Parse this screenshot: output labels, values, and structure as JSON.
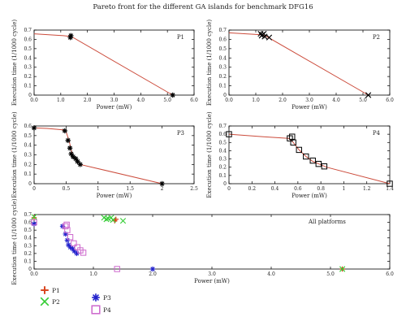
{
  "figure_title": "Pareto front for the different GA islands for benchmark DFG16",
  "colors": {
    "front_line": "#cc4c3c",
    "P1": "#d9441c",
    "P2": "#33cc33",
    "P3": "#2222cc",
    "P4": "#cc66cc",
    "black": "#000000"
  },
  "chart_data": [
    {
      "type": "line",
      "panel_label": "P1",
      "xlabel": "Power (mW)",
      "ylabel": "Execution time (1/1000 cycle)",
      "xlim": [
        0,
        6
      ],
      "ylim": [
        0,
        0.7
      ],
      "xticks": [
        "0.0",
        "1.0",
        "2.0",
        "3.0",
        "4.0",
        "5.0",
        "6.0"
      ],
      "yticks": [
        "0",
        "0.1",
        "0.2",
        "0.3",
        "0.4",
        "0.5",
        "0.6",
        "0.7"
      ],
      "line": [
        [
          0,
          0.66
        ],
        [
          1.1,
          0.64
        ],
        [
          1.4,
          0.63
        ],
        [
          5.2,
          0
        ]
      ],
      "points": [
        [
          1.38,
          0.64
        ],
        [
          1.36,
          0.62
        ],
        [
          5.2,
          0
        ]
      ],
      "marker": "star"
    },
    {
      "type": "line",
      "panel_label": "P2",
      "xlabel": "Power (mW)",
      "ylabel": "Execution time (1/1000 cycle)",
      "xlim": [
        0,
        6
      ],
      "ylim": [
        0,
        0.7
      ],
      "xticks": [
        "0.0",
        "1.0",
        "2.0",
        "3.0",
        "4.0",
        "5.0",
        "6.0"
      ],
      "yticks": [
        "0",
        "0.1",
        "0.2",
        "0.3",
        "0.4",
        "0.5",
        "0.6",
        "0.7"
      ],
      "line": [
        [
          0,
          0.67
        ],
        [
          1.2,
          0.65
        ],
        [
          1.35,
          0.64
        ],
        [
          5.2,
          0
        ]
      ],
      "points": [
        [
          1.18,
          0.66
        ],
        [
          1.25,
          0.65
        ],
        [
          1.3,
          0.66
        ],
        [
          1.22,
          0.64
        ],
        [
          1.33,
          0.63
        ],
        [
          1.5,
          0.62
        ],
        [
          5.2,
          0
        ]
      ],
      "marker": "x"
    },
    {
      "type": "line",
      "panel_label": "P3",
      "xlabel": "Power (mW)",
      "ylabel": "Execution time (1/1000 cycle)",
      "xlim": [
        0,
        2.5
      ],
      "ylim": [
        0,
        0.6
      ],
      "xticks": [
        "0",
        "0.5",
        "1",
        "1.5",
        "2",
        "2.5"
      ],
      "yticks": [
        "0",
        "0.1",
        "0.2",
        "0.3",
        "0.4",
        "0.5",
        "0.6"
      ],
      "line": [
        [
          0,
          0.58
        ],
        [
          0.2,
          0.575
        ],
        [
          0.45,
          0.56
        ],
        [
          0.5,
          0.54
        ],
        [
          0.55,
          0.44
        ],
        [
          0.58,
          0.35
        ],
        [
          0.6,
          0.3
        ],
        [
          0.63,
          0.27
        ],
        [
          0.67,
          0.24
        ],
        [
          0.72,
          0.2
        ],
        [
          2.0,
          0
        ]
      ],
      "points": [
        [
          0,
          0.58
        ],
        [
          0.48,
          0.55
        ],
        [
          0.53,
          0.45
        ],
        [
          0.56,
          0.37
        ],
        [
          0.58,
          0.31
        ],
        [
          0.61,
          0.28
        ],
        [
          0.65,
          0.26
        ],
        [
          0.68,
          0.23
        ],
        [
          0.72,
          0.2
        ],
        [
          2.0,
          0
        ]
      ],
      "marker": "star"
    },
    {
      "type": "line",
      "panel_label": "P4",
      "xlabel": "Power (mW)",
      "ylabel": "Execution time (1/1000 cycle)",
      "xlim": [
        0,
        1.4
      ],
      "ylim": [
        0,
        0.7
      ],
      "xticks": [
        "0",
        "0.2",
        "0.4",
        "0.6",
        "0.8",
        "1",
        "1.2",
        "1.4"
      ],
      "yticks": [
        "0",
        "0.1",
        "0.2",
        "0.3",
        "0.4",
        "0.5",
        "0.6",
        "0.7"
      ],
      "line": [
        [
          0,
          0.6
        ],
        [
          0.3,
          0.57
        ],
        [
          0.52,
          0.55
        ],
        [
          0.56,
          0.5
        ],
        [
          0.61,
          0.41
        ],
        [
          0.67,
          0.33
        ],
        [
          0.73,
          0.27
        ],
        [
          0.8,
          0.23
        ],
        [
          0.85,
          0.2
        ],
        [
          1.4,
          0
        ]
      ],
      "points": [
        [
          0,
          0.6
        ],
        [
          0.53,
          0.55
        ],
        [
          0.55,
          0.57
        ],
        [
          0.56,
          0.5
        ],
        [
          0.61,
          0.41
        ],
        [
          0.67,
          0.33
        ],
        [
          0.73,
          0.28
        ],
        [
          0.78,
          0.24
        ],
        [
          0.83,
          0.21
        ],
        [
          1.4,
          0
        ]
      ],
      "marker": "square"
    },
    {
      "type": "scatter",
      "panel_label": "All platforms",
      "xlabel": "Power (mW)",
      "ylabel": "Execution time (1/1000 cycle)",
      "xlim": [
        0,
        6
      ],
      "ylim": [
        0,
        0.7
      ],
      "xticks": [
        "0.0",
        "1.0",
        "2.0",
        "3.0",
        "4.0",
        "5.0",
        "6.0"
      ],
      "yticks": [
        "0",
        "0.1",
        "0.2",
        "0.3",
        "0.4",
        "0.5",
        "0.6",
        "0.7"
      ],
      "legend_position": "below-left",
      "series": [
        {
          "name": "P1",
          "marker": "plus",
          "points": [
            [
              0,
              0.66
            ],
            [
              1.38,
              0.64
            ],
            [
              1.36,
              0.62
            ],
            [
              5.2,
              0
            ]
          ]
        },
        {
          "name": "P2",
          "marker": "x",
          "points": [
            [
              0,
              0.67
            ],
            [
              1.18,
              0.66
            ],
            [
              1.25,
              0.65
            ],
            [
              1.3,
              0.66
            ],
            [
              1.22,
              0.64
            ],
            [
              1.33,
              0.63
            ],
            [
              1.5,
              0.62
            ],
            [
              5.2,
              0
            ]
          ]
        },
        {
          "name": "P3",
          "marker": "asterisk",
          "points": [
            [
              0,
              0.58
            ],
            [
              0.48,
              0.55
            ],
            [
              0.53,
              0.45
            ],
            [
              0.56,
              0.37
            ],
            [
              0.58,
              0.31
            ],
            [
              0.61,
              0.28
            ],
            [
              0.65,
              0.26
            ],
            [
              0.68,
              0.23
            ],
            [
              0.72,
              0.2
            ],
            [
              2.0,
              0
            ]
          ]
        },
        {
          "name": "P4",
          "marker": "square",
          "points": [
            [
              0,
              0.6
            ],
            [
              0.53,
              0.55
            ],
            [
              0.55,
              0.57
            ],
            [
              0.56,
              0.5
            ],
            [
              0.61,
              0.41
            ],
            [
              0.67,
              0.33
            ],
            [
              0.73,
              0.28
            ],
            [
              0.78,
              0.24
            ],
            [
              0.83,
              0.21
            ],
            [
              1.4,
              0
            ]
          ]
        }
      ]
    }
  ]
}
